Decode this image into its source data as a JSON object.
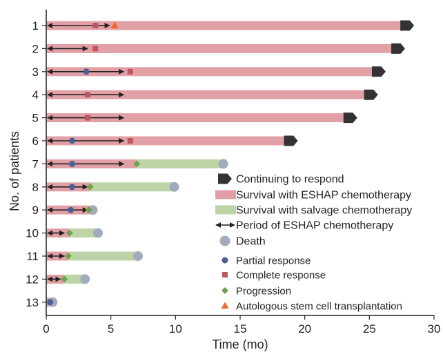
{
  "chart_data": {
    "type": "swimmer",
    "xlabel": "Time (mo)",
    "ylabel": "No. of patients",
    "xlim": [
      0,
      30
    ],
    "xticks": [
      0,
      5,
      10,
      15,
      20,
      25,
      30
    ],
    "grid": false,
    "legend_position": "bottom-right",
    "colors": {
      "eshap": "#e0a0a6",
      "salvage": "#bcd4a6",
      "continuing": "#333333",
      "arrow": "#231f20",
      "death": "#a2abbb",
      "partial": "#4b5f95",
      "complete": "#c0565f",
      "progression": "#6fa34a",
      "transplant": "#ef6a2c"
    },
    "legend": [
      {
        "key": "continuing",
        "label": "Continuing to respond"
      },
      {
        "key": "eshap",
        "label": "Survival with ESHAP chemotherapy"
      },
      {
        "key": "salvage",
        "label": "Survival with salvage chemotherapy"
      },
      {
        "key": "arrow",
        "label": "Period of ESHAP chemotherapy"
      },
      {
        "key": "death",
        "label": "Death"
      },
      {
        "key": "partial",
        "label": "Partial response"
      },
      {
        "key": "complete",
        "label": "Complete response"
      },
      {
        "key": "progression",
        "label": "Progression"
      },
      {
        "key": "transplant",
        "label": "Autologous stem cell transplantation"
      }
    ],
    "patients": [
      {
        "id": "1",
        "eshap_end": 27.5,
        "salvage_end": null,
        "continuing": true,
        "death": false,
        "chemo": [
          0,
          4.9
        ],
        "partial": null,
        "complete": 3.8,
        "progression": null,
        "transplant": 5.3
      },
      {
        "id": "2",
        "eshap_end": 26.8,
        "salvage_end": null,
        "continuing": true,
        "death": false,
        "chemo": [
          0,
          3.2
        ],
        "partial": null,
        "complete": 3.8,
        "progression": null,
        "transplant": null
      },
      {
        "id": "3",
        "eshap_end": 25.3,
        "salvage_end": null,
        "continuing": true,
        "death": false,
        "chemo": [
          0,
          6.0
        ],
        "partial": 3.1,
        "complete": 6.5,
        "progression": null,
        "transplant": null
      },
      {
        "id": "4",
        "eshap_end": 24.7,
        "salvage_end": null,
        "continuing": true,
        "death": false,
        "chemo": [
          0,
          6.0
        ],
        "partial": null,
        "complete": 3.2,
        "progression": null,
        "transplant": null
      },
      {
        "id": "5",
        "eshap_end": 23.1,
        "salvage_end": null,
        "continuing": true,
        "death": false,
        "chemo": [
          0,
          6.0
        ],
        "partial": null,
        "complete": 3.2,
        "progression": null,
        "transplant": null
      },
      {
        "id": "6",
        "eshap_end": 18.5,
        "salvage_end": null,
        "continuing": true,
        "death": false,
        "chemo": [
          0,
          6.0
        ],
        "partial": 2.0,
        "complete": 6.5,
        "progression": null,
        "transplant": null
      },
      {
        "id": "7",
        "eshap_end": 7.0,
        "salvage_end": 13.7,
        "continuing": false,
        "death": true,
        "chemo": [
          0,
          6.0
        ],
        "partial": 2.0,
        "complete": null,
        "progression": 7.0,
        "transplant": null
      },
      {
        "id": "8",
        "eshap_end": 3.4,
        "salvage_end": 9.9,
        "continuing": false,
        "death": true,
        "chemo": [
          0,
          3.2
        ],
        "partial": 2.0,
        "complete": null,
        "progression": 3.4,
        "transplant": null
      },
      {
        "id": "9",
        "eshap_end": 3.3,
        "salvage_end": 3.6,
        "continuing": false,
        "death": true,
        "chemo": [
          0,
          3.2
        ],
        "partial": 1.9,
        "complete": null,
        "progression": 3.3,
        "transplant": null
      },
      {
        "id": "10",
        "eshap_end": 1.8,
        "salvage_end": 4.0,
        "continuing": false,
        "death": true,
        "chemo": [
          0,
          1.4
        ],
        "partial": null,
        "complete": null,
        "progression": 1.8,
        "transplant": null
      },
      {
        "id": "11",
        "eshap_end": 1.7,
        "salvage_end": 7.1,
        "continuing": false,
        "death": true,
        "chemo": [
          0,
          1.4
        ],
        "partial": null,
        "complete": null,
        "progression": 1.7,
        "transplant": null
      },
      {
        "id": "12",
        "eshap_end": 1.4,
        "salvage_end": 3.0,
        "continuing": false,
        "death": true,
        "chemo": [
          0,
          1.1
        ],
        "partial": null,
        "complete": null,
        "progression": 1.4,
        "transplant": null
      },
      {
        "id": "13",
        "eshap_end": 0.5,
        "salvage_end": null,
        "continuing": false,
        "death": true,
        "chemo": [
          0,
          0.5
        ],
        "partial": 0.3,
        "complete": null,
        "progression": null,
        "transplant": null
      }
    ]
  }
}
